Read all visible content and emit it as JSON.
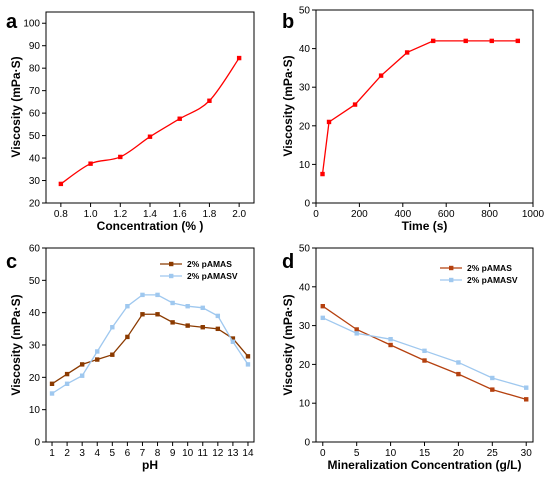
{
  "chart_data": [
    {
      "panel_label": "a",
      "type": "line",
      "xlabel": "Concentration (% )",
      "ylabel": "Viscosity (mPa·S)",
      "xlim": [
        0.7,
        2.1
      ],
      "ylim": [
        20,
        105
      ],
      "xticks": [
        0.8,
        1.0,
        1.2,
        1.4,
        1.6,
        1.8,
        2.0
      ],
      "xtick_labels": [
        "0.8",
        "1.0",
        "1.2",
        "1.4",
        "1.6",
        "1.8",
        "2.0"
      ],
      "yticks": [
        20,
        30,
        40,
        50,
        60,
        70,
        80,
        90,
        100
      ],
      "smooth": true,
      "series": [
        {
          "x": [
            0.8,
            1.0,
            1.2,
            1.4,
            1.6,
            1.8,
            2.0
          ],
          "y": [
            28.5,
            37.5,
            40.5,
            49.5,
            57.5,
            65.5,
            84.5
          ],
          "color": "#ff0000",
          "marker": "square"
        }
      ]
    },
    {
      "panel_label": "b",
      "type": "line",
      "xlabel": "Time (s)",
      "ylabel": "Viscosity (mPa·S)",
      "xlim": [
        0,
        1000
      ],
      "ylim": [
        0,
        50
      ],
      "xticks": [
        0,
        200,
        400,
        600,
        800,
        1000
      ],
      "xtick_labels": [
        "0",
        "200",
        "400",
        "600",
        "800",
        "1000"
      ],
      "yticks": [
        0,
        10,
        20,
        30,
        40,
        50
      ],
      "smooth": false,
      "series": [
        {
          "x": [
            30,
            60,
            180,
            300,
            420,
            540,
            690,
            810,
            930
          ],
          "y": [
            7.5,
            21,
            25.5,
            33,
            39,
            42,
            42,
            42,
            42
          ],
          "color": "#ff0000",
          "marker": "square"
        }
      ]
    },
    {
      "panel_label": "c",
      "type": "line",
      "xlabel": "pH",
      "ylabel": "Viscosity (mPa·S)",
      "xlim": [
        0.6,
        14.4
      ],
      "ylim": [
        0,
        60
      ],
      "xticks": [
        1,
        2,
        3,
        4,
        5,
        6,
        7,
        8,
        9,
        10,
        11,
        12,
        13,
        14
      ],
      "xtick_labels": [
        "1",
        "2",
        "3",
        "4",
        "5",
        "6",
        "7",
        "8",
        "9",
        "10",
        "11",
        "12",
        "13",
        "14"
      ],
      "yticks": [
        0,
        10,
        20,
        30,
        40,
        50,
        60
      ],
      "smooth": false,
      "legend": "top-right",
      "series": [
        {
          "name": "2% pAMAS",
          "x": [
            1,
            2,
            3,
            4,
            5,
            6,
            7,
            8,
            9,
            10,
            11,
            12,
            13,
            14
          ],
          "y": [
            18,
            21,
            24,
            25.5,
            27,
            32.5,
            39.5,
            39.5,
            37,
            36,
            35.5,
            35,
            32,
            26.5
          ],
          "color": "#8b3a00",
          "marker": "square"
        },
        {
          "name": "2% pAMASV",
          "x": [
            1,
            2,
            3,
            4,
            5,
            6,
            7,
            8,
            9,
            10,
            11,
            12,
            13,
            14
          ],
          "y": [
            15,
            18,
            20.5,
            28,
            35.5,
            42,
            45.5,
            45.5,
            43,
            42,
            41.5,
            39,
            31,
            24
          ],
          "color": "#9fc8ef",
          "marker": "square"
        }
      ]
    },
    {
      "panel_label": "d",
      "type": "line",
      "xlabel": "Mineralization Concentration (g/L)",
      "ylabel": "Viscosity (mPa·S)",
      "xlim": [
        -1,
        31
      ],
      "ylim": [
        0,
        50
      ],
      "xticks": [
        0,
        5,
        10,
        15,
        20,
        25,
        30
      ],
      "xtick_labels": [
        "0",
        "5",
        "10",
        "15",
        "20",
        "25",
        "30"
      ],
      "yticks": [
        0,
        10,
        20,
        30,
        40,
        50
      ],
      "smooth": false,
      "legend": "top-right",
      "series": [
        {
          "name": "2% pAMAS",
          "x": [
            0,
            5,
            10,
            15,
            20,
            25,
            30
          ],
          "y": [
            35,
            29,
            25,
            21,
            17.5,
            13.5,
            11
          ],
          "color": "#b5410f",
          "marker": "square"
        },
        {
          "name": "2% pAMASV",
          "x": [
            0,
            5,
            10,
            15,
            20,
            25,
            30
          ],
          "y": [
            32,
            28,
            26.5,
            23.5,
            20.5,
            16.5,
            14
          ],
          "color": "#9fc8ef",
          "marker": "square"
        }
      ]
    }
  ]
}
